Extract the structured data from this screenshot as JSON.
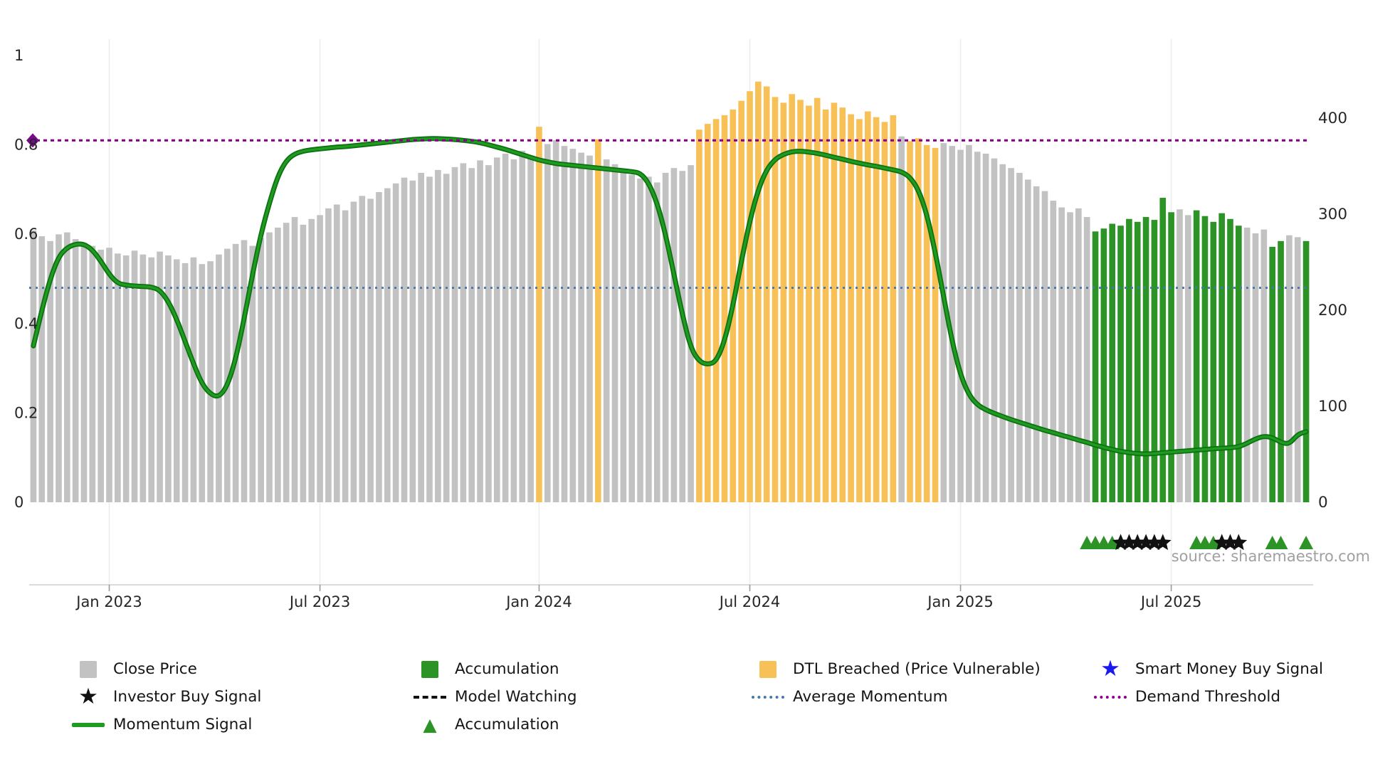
{
  "icons": {
    "star": "★",
    "triangle": "▲",
    "square": "",
    "diamond": "◆"
  },
  "source": "source: sharemaestro.com",
  "colors": {
    "close_bar": "#c2c2c2",
    "accumulation_bar": "#2c9426",
    "dtl_bar": "#f8c158",
    "momentum_line": "#1f9c1f",
    "momentum_line_edge": "#0d7012",
    "average_momentum": "#4878ab",
    "demand_threshold": "#8b008b",
    "threshold_marker": "#7a0a8c",
    "investor_black": "#111111",
    "smart_money_blue": "#1a1aee",
    "axis_text": "#262626",
    "grid": "#ececec",
    "axis_line": "#cfcfcf",
    "tick": "#9a9a9a",
    "source_text": "#a0a0a0"
  },
  "chart_data": {
    "type": "combo-bar-line",
    "title": "",
    "left_axis_label": "",
    "right_axis_label": "",
    "left_ticks": [
      1,
      0.8,
      0.6,
      0.4,
      0.2,
      0
    ],
    "right_ticks": [
      400,
      300,
      200,
      100,
      0
    ],
    "left_range": [
      0,
      1
    ],
    "right_range": [
      0,
      400
    ],
    "x_ticks": [
      {
        "label": "Jan 2023",
        "index": 9
      },
      {
        "label": "Jul 2023",
        "index": 34
      },
      {
        "label": "Jan 2024",
        "index": 60
      },
      {
        "label": "Jul 2024",
        "index": 85
      },
      {
        "label": "Jan 2025",
        "index": 110
      },
      {
        "label": "Jul 2025",
        "index": 135
      }
    ],
    "average_momentum": 0.48,
    "demand_threshold": 0.81,
    "close_price": [
      283,
      277,
      272,
      279,
      281,
      274,
      270,
      267,
      263,
      265,
      259,
      257,
      262,
      258,
      255,
      261,
      257,
      253,
      249,
      255,
      248,
      251,
      258,
      264,
      269,
      273,
      267,
      275,
      281,
      286,
      291,
      297,
      289,
      295,
      299,
      306,
      310,
      304,
      313,
      319,
      316,
      323,
      327,
      332,
      338,
      335,
      343,
      339,
      346,
      342,
      349,
      353,
      348,
      356,
      351,
      359,
      363,
      357,
      366,
      361,
      391,
      373,
      377,
      371,
      368,
      364,
      361,
      378,
      357,
      352,
      346,
      341,
      337,
      339,
      333,
      343,
      348,
      345,
      351,
      388,
      394,
      399,
      403,
      409,
      418,
      428,
      438,
      433,
      422,
      416,
      425,
      419,
      413,
      421,
      409,
      416,
      411,
      404,
      399,
      407,
      401,
      396,
      403,
      381,
      376,
      379,
      372,
      369,
      374,
      371,
      367,
      372,
      365,
      363,
      358,
      352,
      348,
      343,
      336,
      329,
      324,
      314,
      307,
      302,
      306,
      297,
      282,
      285,
      290,
      288,
      295,
      292,
      297,
      294,
      317,
      302,
      305,
      299,
      304,
      298,
      292,
      301,
      295,
      288,
      286,
      280,
      284,
      266,
      272,
      278,
      276,
      272
    ],
    "bar_type_runs": [
      [
        "close",
        60
      ],
      [
        "dtl",
        1
      ],
      [
        "close",
        6
      ],
      [
        "dtl",
        1
      ],
      [
        "close",
        11
      ],
      [
        "dtl",
        24
      ],
      [
        "close",
        1
      ],
      [
        "dtl",
        4
      ],
      [
        "close",
        18
      ],
      [
        "accumulation",
        10
      ],
      [
        "close",
        2
      ],
      [
        "accumulation",
        6
      ],
      [
        "close",
        3
      ],
      [
        "accumulation",
        2
      ],
      [
        "close",
        2
      ],
      [
        "accumulation",
        1
      ]
    ],
    "momentum": [
      0.35,
      0.43,
      0.5,
      0.55,
      0.57,
      0.578,
      0.578,
      0.565,
      0.54,
      0.51,
      0.49,
      0.486,
      0.484,
      0.483,
      0.482,
      0.475,
      0.45,
      0.41,
      0.36,
      0.31,
      0.265,
      0.242,
      0.235,
      0.26,
      0.32,
      0.41,
      0.51,
      0.6,
      0.67,
      0.73,
      0.765,
      0.78,
      0.786,
      0.789,
      0.791,
      0.793,
      0.795,
      0.796,
      0.798,
      0.8,
      0.802,
      0.804,
      0.806,
      0.808,
      0.81,
      0.812,
      0.813,
      0.814,
      0.814,
      0.813,
      0.812,
      0.81,
      0.808,
      0.805,
      0.8,
      0.795,
      0.79,
      0.784,
      0.778,
      0.772,
      0.766,
      0.762,
      0.758,
      0.756,
      0.754,
      0.752,
      0.75,
      0.748,
      0.746,
      0.744,
      0.742,
      0.74,
      0.737,
      0.715,
      0.67,
      0.6,
      0.51,
      0.42,
      0.345,
      0.315,
      0.308,
      0.315,
      0.36,
      0.44,
      0.54,
      0.63,
      0.7,
      0.745,
      0.768,
      0.779,
      0.785,
      0.786,
      0.784,
      0.781,
      0.777,
      0.772,
      0.768,
      0.763,
      0.759,
      0.755,
      0.752,
      0.748,
      0.744,
      0.74,
      0.728,
      0.7,
      0.645,
      0.56,
      0.46,
      0.36,
      0.285,
      0.24,
      0.218,
      0.207,
      0.199,
      0.192,
      0.185,
      0.179,
      0.173,
      0.167,
      0.161,
      0.156,
      0.15,
      0.145,
      0.139,
      0.134,
      0.128,
      0.123,
      0.118,
      0.114,
      0.111,
      0.109,
      0.108,
      0.109,
      0.111,
      0.112,
      0.114,
      0.115,
      0.117,
      0.118,
      0.12,
      0.121,
      0.122,
      0.124,
      0.132,
      0.142,
      0.148,
      0.145,
      0.134,
      0.13,
      0.152,
      0.158
    ],
    "accumulation_markers": [
      125,
      126,
      127,
      128,
      138,
      139,
      140,
      147,
      148,
      151
    ],
    "investor_buy_markers": [
      129,
      130,
      131,
      132,
      133,
      134,
      141,
      142,
      143
    ]
  },
  "legend": {
    "columns": [
      {
        "items": [
          {
            "label": "Close Price"
          },
          {
            "label": "Investor Buy Signal"
          },
          {
            "label": "Momentum Signal"
          }
        ]
      },
      {
        "items": [
          {
            "label": "Accumulation"
          },
          {
            "label": "Model Watching"
          },
          {
            "label": "Accumulation"
          }
        ]
      },
      {
        "items": [
          {
            "label": "DTL Breached (Price Vulnerable)"
          },
          {
            "label": "Average Momentum"
          }
        ]
      },
      {
        "items": [
          {
            "label": "Smart Money Buy Signal"
          },
          {
            "label": "Demand Threshold"
          }
        ]
      }
    ]
  }
}
